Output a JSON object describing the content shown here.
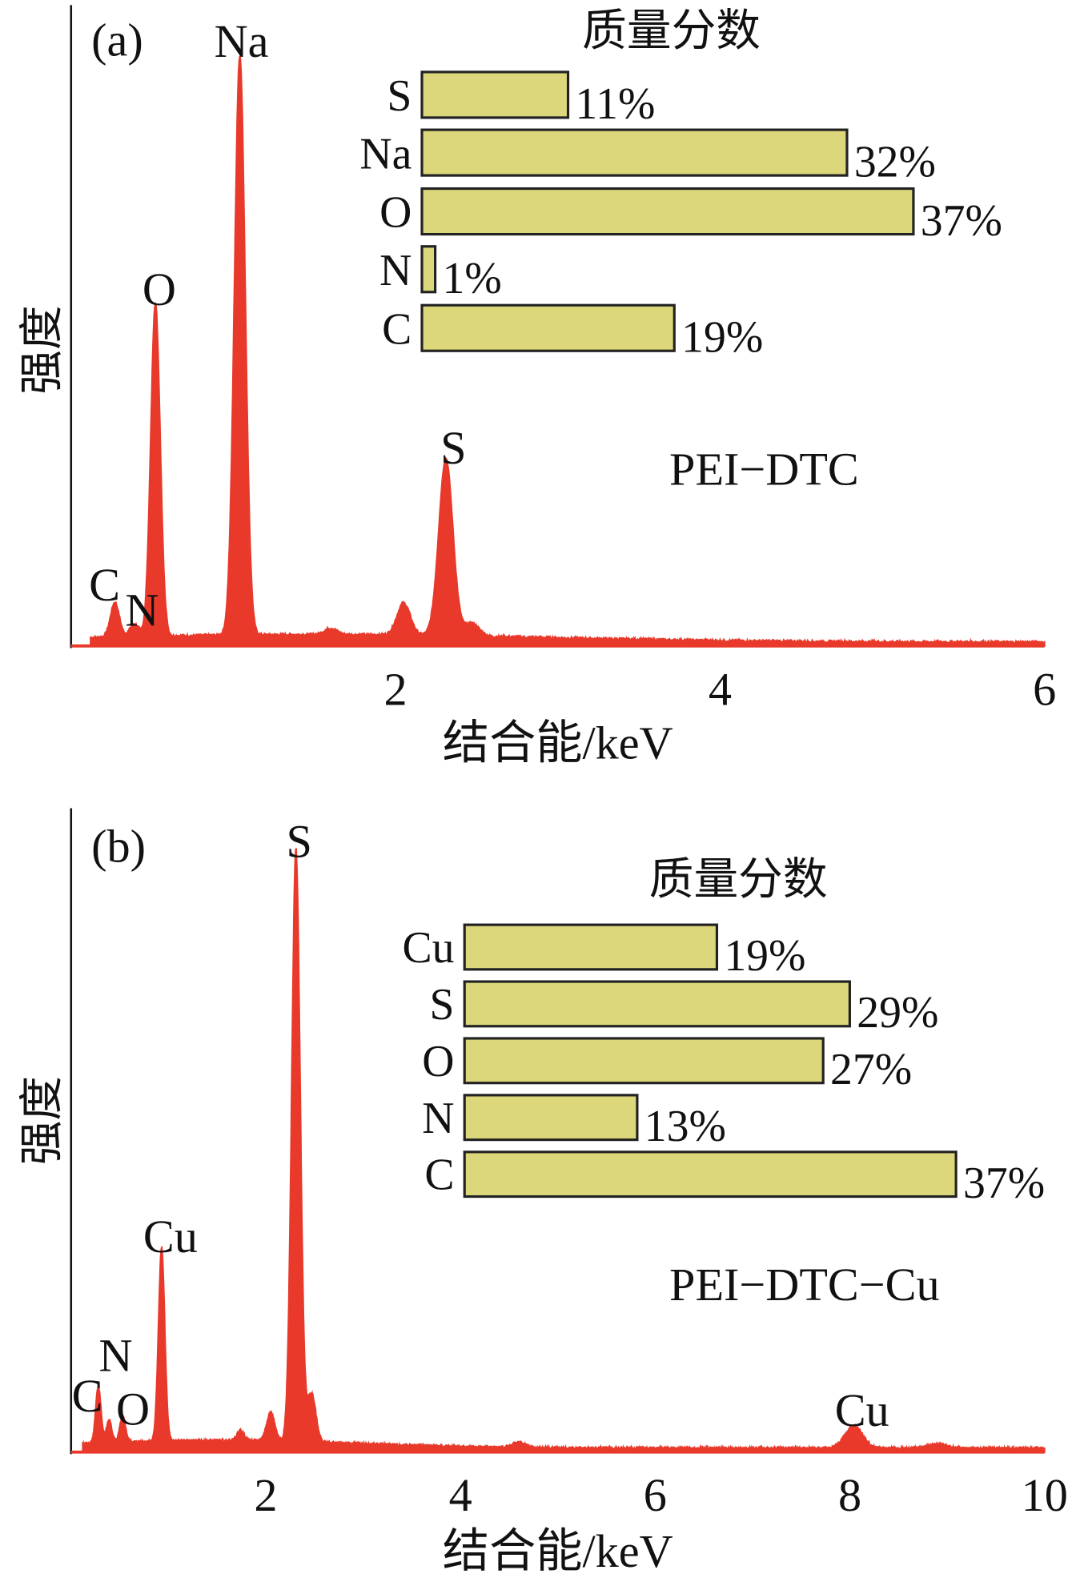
{
  "colors": {
    "spectrum": "#e8392b",
    "bar_fill": "#ddd77c",
    "bar_stroke": "#222222",
    "axis": "#111111"
  },
  "chart_data": [
    {
      "type": "area",
      "panel_label": "(a)",
      "sample_label": "PEI−DTC",
      "xlabel": "结合能/keV",
      "ylabel": "强度",
      "xlim": [
        0,
        6
      ],
      "xticks": [
        2,
        4,
        6
      ],
      "y_units": "relative intensity (no ticks printed)",
      "peaks": [
        {
          "label": "C",
          "energy": 0.27,
          "intensity": 0.054
        },
        {
          "label": "N",
          "energy": 0.39,
          "intensity": 0.02
        },
        {
          "label": "O",
          "energy": 0.52,
          "intensity": 0.52
        },
        {
          "label": "Na",
          "energy": 1.04,
          "intensity": 0.905
        },
        {
          "label": "",
          "energy": 1.6,
          "intensity": 0.01
        },
        {
          "label": "",
          "energy": 2.05,
          "intensity": 0.05
        },
        {
          "label": "S",
          "energy": 2.31,
          "intensity": 0.277
        },
        {
          "label": "",
          "energy": 2.47,
          "intensity": 0.02
        }
      ],
      "inset": {
        "title": "质量分数",
        "type": "bar",
        "orientation": "horizontal",
        "categories": [
          "S",
          "Na",
          "O",
          "N",
          "C"
        ],
        "values": [
          11,
          32,
          37,
          1,
          19
        ],
        "value_labels": [
          "11%",
          "32%",
          "37%",
          "1%",
          "19%"
        ]
      }
    },
    {
      "type": "area",
      "panel_label": "(b)",
      "sample_label": "PEI−DTC−Cu",
      "xlabel": "结合能/keV",
      "ylabel": "强度",
      "xlim": [
        0,
        10
      ],
      "xticks": [
        2,
        4,
        6,
        8,
        10
      ],
      "y_units": "relative intensity (no ticks printed)",
      "peaks": [
        {
          "label": "C",
          "energy": 0.28,
          "intensity": 0.088
        },
        {
          "label": "N",
          "energy": 0.39,
          "intensity": 0.035
        },
        {
          "label": "O",
          "energy": 0.53,
          "intensity": 0.04
        },
        {
          "label": "Cu",
          "energy": 0.93,
          "intensity": 0.3
        },
        {
          "label": "",
          "energy": 1.74,
          "intensity": 0.015
        },
        {
          "label": "",
          "energy": 2.05,
          "intensity": 0.045
        },
        {
          "label": "S",
          "energy": 2.31,
          "intensity": 0.92
        },
        {
          "label": "",
          "energy": 2.47,
          "intensity": 0.075
        },
        {
          "label": "",
          "energy": 4.6,
          "intensity": 0.008
        },
        {
          "label": "Cu",
          "energy": 8.04,
          "intensity": 0.035
        },
        {
          "label": "",
          "energy": 8.9,
          "intensity": 0.006
        }
      ],
      "inset": {
        "title": "质量分数",
        "type": "bar",
        "orientation": "horizontal",
        "categories": [
          "Cu",
          "S",
          "O",
          "N",
          "C"
        ],
        "values": [
          19,
          29,
          27,
          13,
          37
        ],
        "value_labels": [
          "19%",
          "29%",
          "27%",
          "13%",
          "37%"
        ]
      }
    }
  ]
}
